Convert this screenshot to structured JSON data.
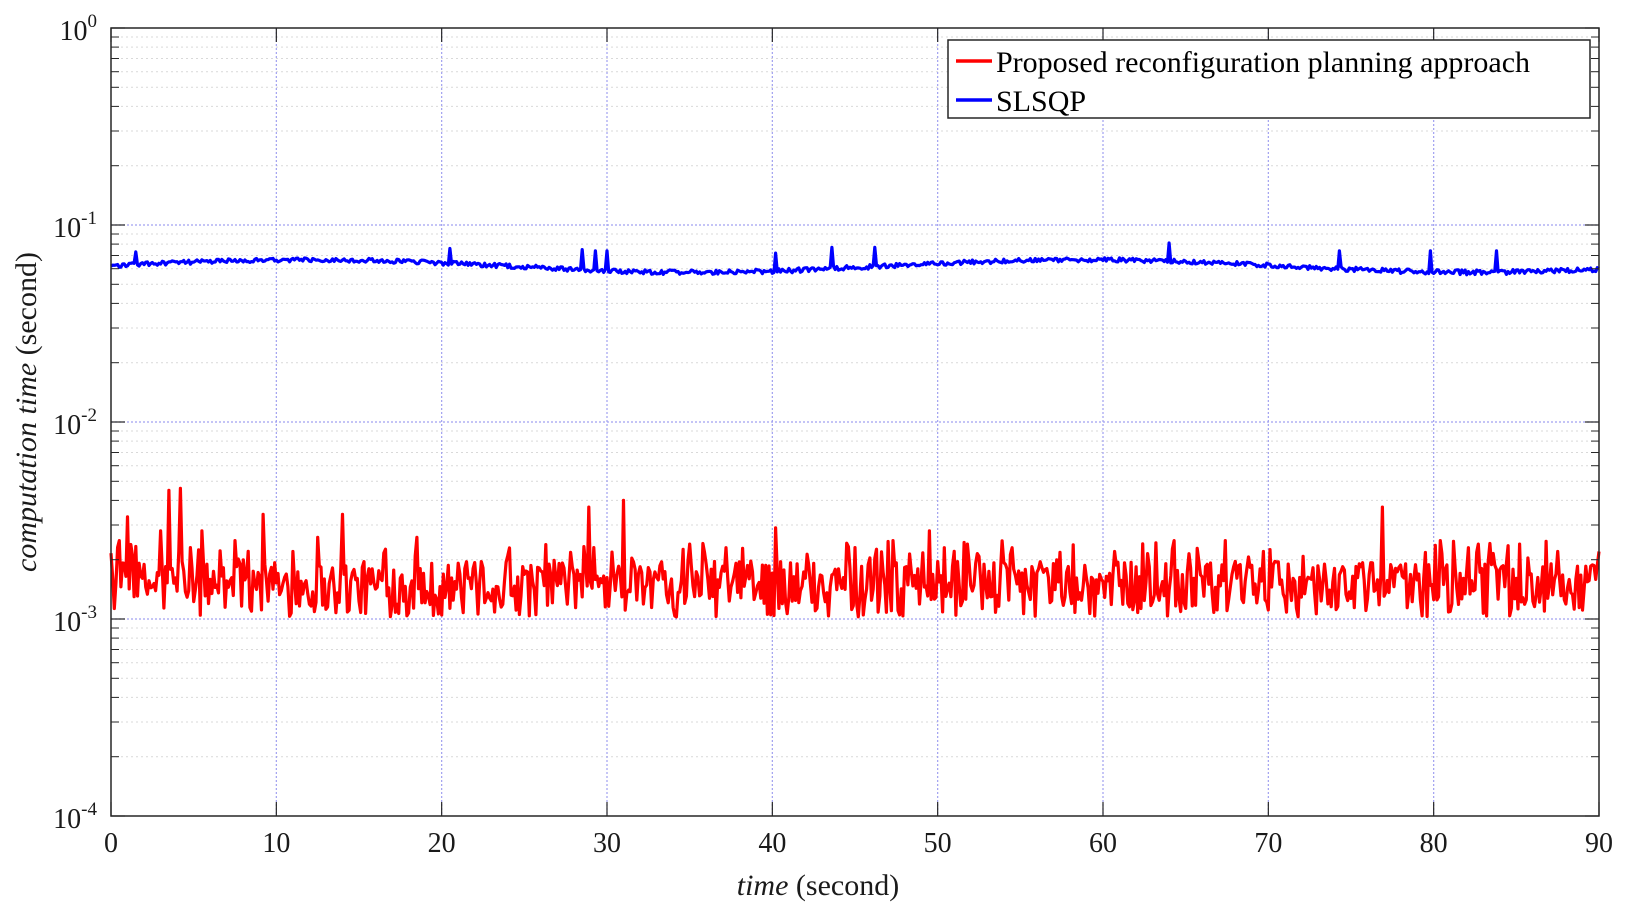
{
  "chart_data": {
    "type": "line",
    "title": "",
    "xlabel": {
      "italic": "time",
      "rest": " (second)"
    },
    "ylabel": {
      "italic": "computation time",
      "rest": " (second)"
    },
    "xlim": [
      0,
      90
    ],
    "ylim": [
      0.0001,
      1
    ],
    "yscale": "log",
    "x_ticks": [
      "0",
      "10",
      "20",
      "30",
      "40",
      "50",
      "60",
      "70",
      "80",
      "90"
    ],
    "y_ticks": [
      {
        "base": "10",
        "exp": "-4"
      },
      {
        "base": "10",
        "exp": "-3"
      },
      {
        "base": "10",
        "exp": "-2"
      },
      {
        "base": "10",
        "exp": "-1"
      },
      {
        "base": "10",
        "exp": "0"
      }
    ],
    "grid": true,
    "legend_position": "top-right",
    "series": [
      {
        "name": "Proposed reconfiguration planning approach",
        "color": "#ff0000",
        "baseline": 0.00125,
        "x_spikes": [
          0.5,
          1.0,
          3.0,
          3.5,
          4.2,
          5.5,
          7.5,
          9.2,
          11.0,
          12.5,
          14.0,
          18.5,
          24.0,
          28.9,
          31.0,
          35.0,
          37.2,
          40.2,
          45.0,
          47.3,
          49.5,
          51.8,
          54.5,
          60.7,
          64.3,
          67.4,
          69.7,
          76.9,
          80.4,
          82.7,
          85.2,
          87.5,
          90.0
        ],
        "y_spikes": [
          0.0025,
          0.0033,
          0.0028,
          0.0045,
          0.0046,
          0.0028,
          0.0025,
          0.0034,
          0.0022,
          0.0026,
          0.0034,
          0.0026,
          0.0021,
          0.0037,
          0.004,
          0.0024,
          0.0023,
          0.0029,
          0.0023,
          0.0025,
          0.0028,
          0.0024,
          0.0023,
          0.0022,
          0.0025,
          0.0025,
          0.0022,
          0.0037,
          0.0025,
          0.0024,
          0.0024,
          0.0022,
          0.0022
        ]
      },
      {
        "name": "SLSQP",
        "color": "#0000ff",
        "baseline": 0.065,
        "x_spikes": [
          1.5,
          20.5,
          28.5,
          29.3,
          30.0,
          40.2,
          43.6,
          46.2,
          64.0,
          74.3,
          79.8,
          83.8
        ],
        "y_spikes": [
          0.073,
          0.076,
          0.075,
          0.074,
          0.074,
          0.072,
          0.077,
          0.077,
          0.081,
          0.074,
          0.074,
          0.074
        ]
      }
    ]
  },
  "colors": {
    "grid": "#a0a0f0",
    "axes": "#262626"
  }
}
